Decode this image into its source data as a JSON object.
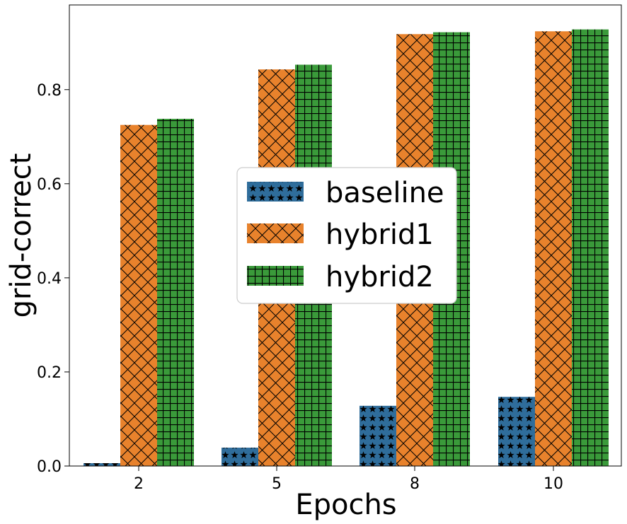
{
  "chart_data": {
    "type": "bar",
    "title": "",
    "xlabel": "Epochs",
    "ylabel": "grid-correct",
    "categories": [
      "2",
      "5",
      "8",
      "10"
    ],
    "ylim": [
      0,
      0.98
    ],
    "yticks": [
      0.0,
      0.2,
      0.4,
      0.6,
      0.8
    ],
    "ytick_labels": [
      "0.0",
      "0.2",
      "0.4",
      "0.6",
      "0.8"
    ],
    "grid": false,
    "legend_position": "center",
    "series": [
      {
        "name": "baseline",
        "values": [
          0.006,
          0.039,
          0.128,
          0.147
        ],
        "color": "#2f6d9b",
        "hatch": "stars"
      },
      {
        "name": "hybrid1",
        "values": [
          0.725,
          0.843,
          0.918,
          0.924
        ],
        "color": "#e8822c",
        "hatch": "crosshatch"
      },
      {
        "name": "hybrid2",
        "values": [
          0.738,
          0.853,
          0.922,
          0.928
        ],
        "color": "#3a9a3a",
        "hatch": "grid"
      }
    ]
  }
}
